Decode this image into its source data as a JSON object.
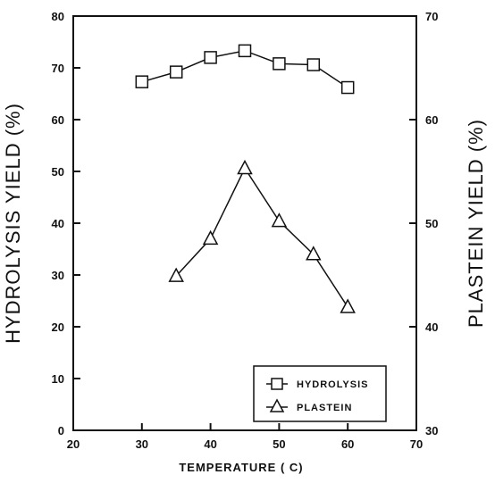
{
  "chart_data": {
    "type": "line",
    "xlabel": "TEMPERATURE ( C)",
    "ylabel_left": "HYDROLYSIS YIELD (%)",
    "ylabel_right": "PLASTEIN YIELD (%)",
    "xlim": [
      20,
      70
    ],
    "ylim_left": [
      0,
      80
    ],
    "ylim_right": [
      30,
      70
    ],
    "x_ticks": [
      20,
      30,
      40,
      50,
      60,
      70
    ],
    "y_ticks_left": [
      0,
      10,
      20,
      30,
      40,
      50,
      60,
      70,
      80
    ],
    "y_ticks_right": [
      30,
      40,
      50,
      60,
      70
    ],
    "legend_position": "bottom-right",
    "grid": false,
    "series": [
      {
        "name": "HYDROLYSIS",
        "axis": "left",
        "marker": "square",
        "x": [
          30,
          35,
          40,
          45,
          50,
          55,
          60
        ],
        "y": [
          67.3,
          69.2,
          72.0,
          73.3,
          70.8,
          70.6,
          66.2
        ]
      },
      {
        "name": "PLASTEIN",
        "axis": "right",
        "marker": "triangle",
        "x": [
          35,
          40,
          45,
          50,
          55,
          60
        ],
        "y": [
          44.9,
          48.5,
          55.3,
          50.2,
          47.0,
          41.9
        ]
      }
    ]
  }
}
